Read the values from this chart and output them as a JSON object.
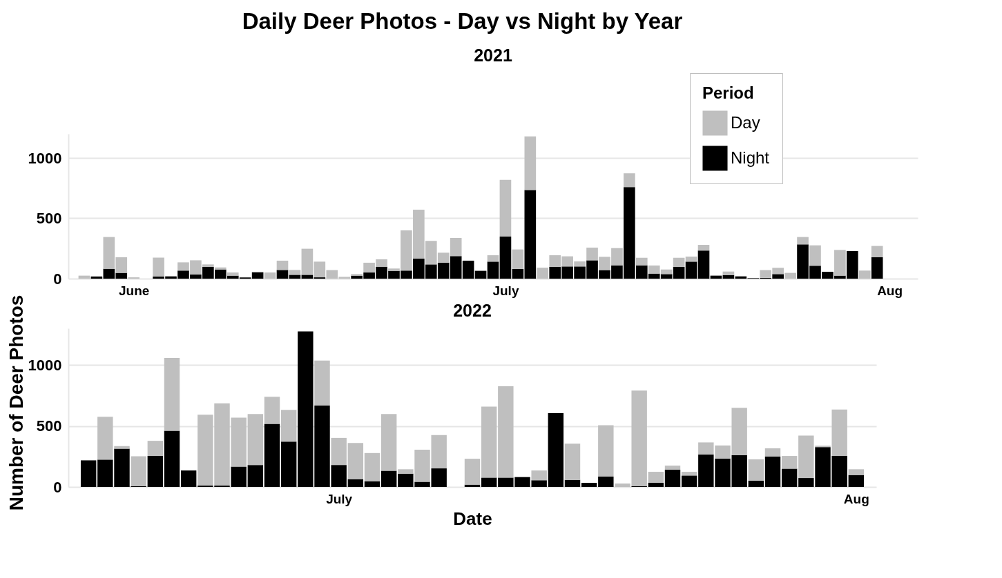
{
  "chart_data": [
    {
      "type": "bar",
      "title": "Daily Deer Photos - Day vs Night by Year",
      "subtitle": "2021",
      "ylabel": "Number of Deer Photos",
      "legend_title": "Period",
      "legend": "top right",
      "stacked": true,
      "grid": "y",
      "x": [
        "2021-05-28",
        "2021-05-29",
        "2021-05-30",
        "2021-05-31",
        "2021-06-01",
        "2021-06-02",
        "2021-06-03",
        "2021-06-04",
        "2021-06-05",
        "2021-06-06",
        "2021-06-07",
        "2021-06-08",
        "2021-06-09",
        "2021-06-10",
        "2021-06-11",
        "2021-06-12",
        "2021-06-13",
        "2021-06-14",
        "2021-06-15",
        "2021-06-16",
        "2021-06-17",
        "2021-06-18",
        "2021-06-19",
        "2021-06-20",
        "2021-06-21",
        "2021-06-22",
        "2021-06-23",
        "2021-06-24",
        "2021-06-25",
        "2021-06-26",
        "2021-06-27",
        "2021-06-28",
        "2021-06-29",
        "2021-06-30",
        "2021-07-01",
        "2021-07-02",
        "2021-07-03",
        "2021-07-04",
        "2021-07-05",
        "2021-07-06",
        "2021-07-07",
        "2021-07-08",
        "2021-07-09",
        "2021-07-10",
        "2021-07-11",
        "2021-07-12",
        "2021-07-13",
        "2021-07-14",
        "2021-07-15",
        "2021-07-16",
        "2021-07-17",
        "2021-07-18",
        "2021-07-19",
        "2021-07-20",
        "2021-07-21",
        "2021-07-22",
        "2021-07-23",
        "2021-07-24",
        "2021-07-25",
        "2021-07-26",
        "2021-07-27",
        "2021-07-28",
        "2021-07-29",
        "2021-07-30",
        "2021-07-31"
      ],
      "xlim": [
        "2021-05-27",
        "2021-08-03"
      ],
      "xticks": [
        {
          "value": "2021-06-01",
          "label": "June"
        },
        {
          "value": "2021-07-01",
          "label": "July"
        },
        {
          "value": "2021-08-01",
          "label": "Aug"
        }
      ],
      "ylim": [
        0,
        1200
      ],
      "yticks": [
        0,
        500,
        1000
      ],
      "series": [
        {
          "name": "Night",
          "color": "#000000",
          "values": [
            0,
            18,
            82,
            48,
            0,
            0,
            17,
            19,
            67,
            34,
            97,
            76,
            25,
            10,
            53,
            0,
            72,
            32,
            32,
            11,
            0,
            0,
            25,
            51,
            99,
            65,
            67,
            166,
            118,
            133,
            187,
            149,
            65,
            141,
            349,
            80,
            734,
            0,
            97,
            101,
            101,
            152,
            71,
            110,
            759,
            110,
            42,
            38,
            97,
            141,
            233,
            25,
            30,
            19,
            4,
            6,
            38,
            0,
            284,
            107,
            57,
            25,
            229,
            0,
            177
          ]
        },
        {
          "name": "Day",
          "color": "#bfbfbf",
          "values": [
            25,
            0,
            263,
            129,
            11,
            null,
            157,
            0,
            68,
            118,
            21,
            17,
            26,
            0,
            0,
            51,
            77,
            40,
            216,
            130,
            71,
            15,
            13,
            81,
            61,
            19,
            333,
            406,
            195,
            82,
            150,
            0,
            0,
            53,
            469,
            162,
            444,
            91,
            97,
            84,
            42,
            105,
            110,
            143,
            114,
            63,
            67,
            38,
            76,
            42,
            47,
            0,
            29,
            0,
            0,
            65,
            52,
            48,
            61,
            169,
            0,
            213,
            0,
            67,
            94
          ]
        }
      ]
    },
    {
      "type": "bar",
      "subtitle": "2022",
      "xlabel": "Date",
      "stacked": true,
      "grid": "y",
      "x": [
        "2022-06-16",
        "2022-06-17",
        "2022-06-18",
        "2022-06-19",
        "2022-06-20",
        "2022-06-21",
        "2022-06-22",
        "2022-06-23",
        "2022-06-24",
        "2022-06-25",
        "2022-06-26",
        "2022-06-27",
        "2022-06-28",
        "2022-06-29",
        "2022-06-30",
        "2022-07-01",
        "2022-07-02",
        "2022-07-03",
        "2022-07-04",
        "2022-07-05",
        "2022-07-06",
        "2022-07-07",
        "2022-07-08",
        "2022-07-09",
        "2022-07-10",
        "2022-07-11",
        "2022-07-12",
        "2022-07-13",
        "2022-07-14",
        "2022-07-15",
        "2022-07-16",
        "2022-07-17",
        "2022-07-18",
        "2022-07-19",
        "2022-07-20",
        "2022-07-21",
        "2022-07-22",
        "2022-07-23",
        "2022-07-24",
        "2022-07-25",
        "2022-07-26",
        "2022-07-27",
        "2022-07-28",
        "2022-07-29",
        "2022-07-30",
        "2022-07-31",
        "2022-08-01"
      ],
      "xlim": [
        "2022-06-15",
        "2022-08-02"
      ],
      "xticks": [
        {
          "value": "2022-07-01",
          "label": "July"
        },
        {
          "value": "2022-08-01",
          "label": "Aug"
        }
      ],
      "ylim": [
        0,
        1300
      ],
      "yticks": [
        0,
        500,
        1000
      ],
      "series": [
        {
          "color": "#000000",
          "values": [
            218,
            224,
            314,
            6,
            254,
            461,
            135,
            11,
            11,
            167,
            180,
            517,
            372,
            1275,
            667,
            180,
            64,
            47,
            133,
            109,
            43,
            152,
            0,
            19,
            77,
            77,
            81,
            55,
            605,
            58,
            34,
            85,
            0,
            6,
            34,
            141,
            94,
            265,
            233,
            261,
            51,
            248,
            150,
            73,
            327,
            254,
            98
          ]
        },
        {
          "color": "#bfbfbf",
          "values": [
            0,
            351,
            21,
            246,
            124,
            596,
            0,
            581,
            675,
            401,
            418,
            222,
            260,
            0,
            369,
            222,
            297,
            231,
            465,
            36,
            262,
            273,
            null,
            212,
            581,
            748,
            0,
            80,
            null,
            297,
            0,
            421,
            28,
            784,
            90,
            34,
            30,
            100,
            107,
            388,
            175,
            68,
            104,
            348,
            11,
            381,
            47
          ]
        }
      ]
    }
  ]
}
